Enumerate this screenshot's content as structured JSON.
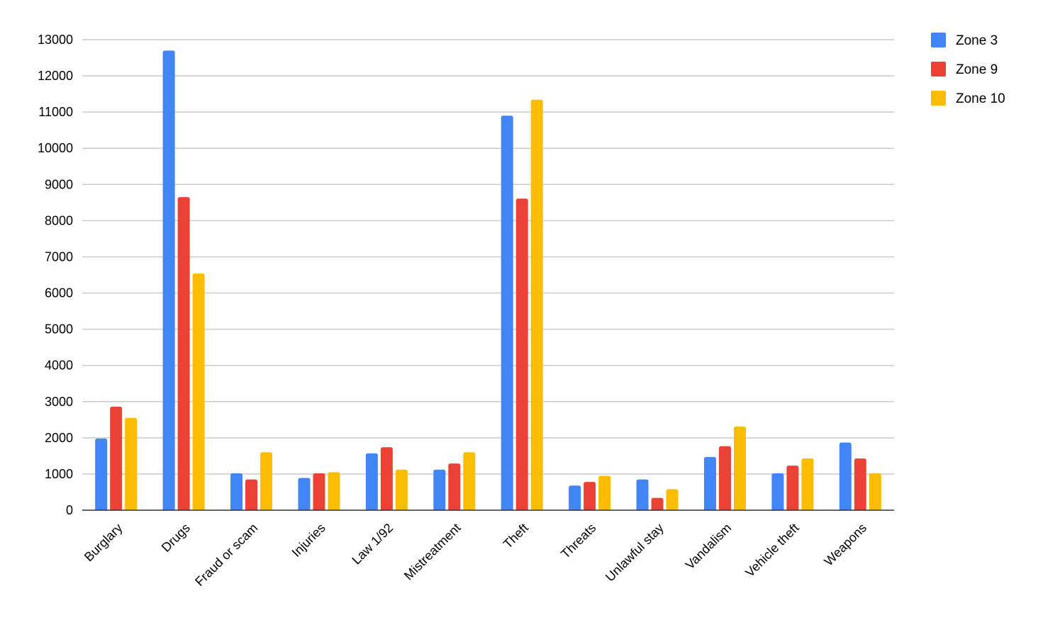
{
  "chart_data": {
    "type": "bar",
    "title": "",
    "xlabel": "",
    "ylabel": "",
    "ylim": [
      0,
      13000
    ],
    "yticks": [
      0,
      1000,
      2000,
      3000,
      4000,
      5000,
      6000,
      7000,
      8000,
      9000,
      10000,
      11000,
      12000,
      13000
    ],
    "grid": true,
    "legend_position": "top-right",
    "categories": [
      "Burglary",
      "Drugs",
      "Fraud or scam",
      "Injuries",
      "Law 1/92",
      "Mistreatment",
      "Theft",
      "Threats",
      "Unlawful stay",
      "Vandalism",
      "Vehicle theft",
      "Weapons"
    ],
    "series": [
      {
        "name": "Zone 3",
        "color": "#4285F4",
        "values": [
          1980,
          12700,
          1020,
          890,
          1570,
          1120,
          10900,
          680,
          850,
          1470,
          1020,
          1870
        ]
      },
      {
        "name": "Zone 9",
        "color": "#EA4335",
        "values": [
          2860,
          8650,
          850,
          1020,
          1740,
          1290,
          8610,
          780,
          340,
          1770,
          1230,
          1430
        ]
      },
      {
        "name": "Zone 10",
        "color": "#FBBC04",
        "values": [
          2550,
          6540,
          1600,
          1050,
          1120,
          1600,
          11340,
          950,
          580,
          2310,
          1430,
          1020
        ]
      }
    ]
  }
}
